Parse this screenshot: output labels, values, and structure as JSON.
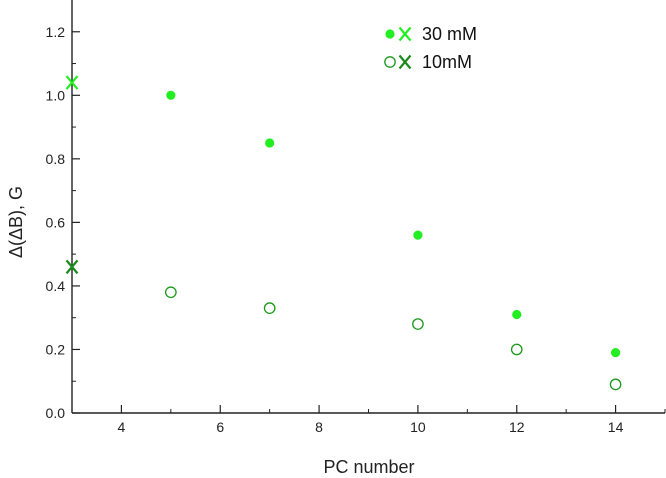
{
  "chart_data": {
    "type": "scatter",
    "xlabel": "PC number",
    "ylabel": "Δ(ΔB), G",
    "xlim": [
      3,
      15
    ],
    "ylim": [
      0,
      1.3
    ],
    "xticks": [
      4,
      6,
      8,
      10,
      12,
      14
    ],
    "yticks": [
      0.0,
      0.2,
      0.4,
      0.6,
      0.8,
      1.0,
      1.2
    ],
    "grid": false,
    "legend_position": "top-right",
    "series": [
      {
        "name": "30 mM",
        "marker": "filled-circle",
        "color": "#22ee22",
        "x": [
          5,
          7,
          10,
          12,
          14
        ],
        "y": [
          1.0,
          0.85,
          0.56,
          0.31,
          0.19
        ]
      },
      {
        "name": "10mM",
        "marker": "open-circle",
        "color": "#1a9a1a",
        "x": [
          5,
          7,
          10,
          12,
          14
        ],
        "y": [
          0.38,
          0.33,
          0.28,
          0.2,
          0.09
        ]
      }
    ],
    "x_markers": [
      {
        "series": "30 mM",
        "x": 3,
        "y": 1.04,
        "color": "#22ee22"
      },
      {
        "series": "10mM",
        "x": 3,
        "y": 0.46,
        "color": "#1a8a1a"
      }
    ],
    "legend": [
      {
        "label": "30 mM",
        "color": "#22ee22",
        "x_color": "#22ee22",
        "marker": "filled-circle"
      },
      {
        "label": "10mM",
        "color": "#1a9a1a",
        "x_color": "#1a8a1a",
        "marker": "open-circle"
      }
    ]
  }
}
